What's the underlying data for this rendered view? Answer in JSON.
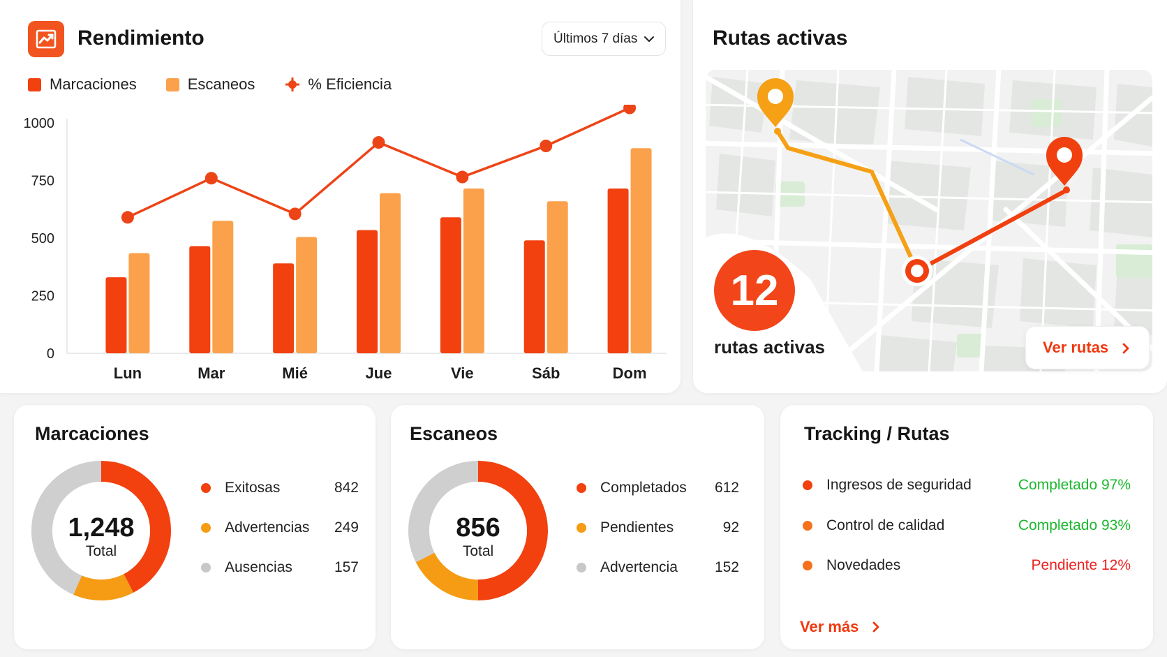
{
  "performance": {
    "title": "Rendimiento",
    "period": "Últimos 7 días",
    "legend": {
      "marcaciones": "Marcaciones",
      "escaneos": "Escaneos",
      "eficiencia": "% Eficiencia"
    }
  },
  "chart_data": {
    "type": "bar",
    "categories": [
      "Lun",
      "Mar",
      "Mié",
      "Jue",
      "Vie",
      "Sáb",
      "Dom"
    ],
    "series": [
      {
        "name": "Marcaciones",
        "type": "bar",
        "color": "#f2400f",
        "values": [
          330,
          465,
          390,
          535,
          590,
          490,
          715
        ]
      },
      {
        "name": "Escaneos",
        "type": "bar",
        "color": "#fba14c",
        "values": [
          435,
          575,
          505,
          695,
          715,
          660,
          890
        ]
      },
      {
        "name": "% Eficiencia",
        "type": "line",
        "color": "#ed4417",
        "values": [
          590,
          760,
          605,
          915,
          765,
          900,
          1065
        ]
      }
    ],
    "ylim": [
      0,
      1000
    ],
    "yticks": [
      "0",
      "250",
      "500",
      "750",
      "1000"
    ],
    "grid": false,
    "legend_position": "top-left"
  },
  "routes": {
    "title": "Rutas activas",
    "count": "12",
    "caption": "rutas activas",
    "button": "Ver rutas"
  },
  "marcaciones": {
    "title": "Marcaciones",
    "total": "1,248",
    "total_label": "Total",
    "items": [
      {
        "label": "Exitosas",
        "value": "842",
        "color": "#f2400f"
      },
      {
        "label": "Advertencias",
        "value": "249",
        "color": "#f59c14"
      },
      {
        "label": "Ausencias",
        "value": "157",
        "color": "#c8c8c8"
      }
    ]
  },
  "escaneos": {
    "title": "Escaneos",
    "total": "856",
    "total_label": "Total",
    "items": [
      {
        "label": "Completados",
        "value": "612",
        "color": "#f2400f"
      },
      {
        "label": "Pendientes",
        "value": "92",
        "color": "#f59c14"
      },
      {
        "label": "Advertencia",
        "value": "152",
        "color": "#c8c8c8"
      }
    ]
  },
  "tracking": {
    "title": "Tracking / Rutas",
    "items": [
      {
        "label": "Ingresos de seguridad",
        "status": "Completado 97%",
        "status_color": "#1cb82e",
        "dot_color": "#f2400f"
      },
      {
        "label": "Control de calidad",
        "status": "Completado 93%",
        "status_color": "#1cb82e",
        "dot_color": "#f5711c"
      },
      {
        "label": "Novedades",
        "status": "Pendiente 12%",
        "status_color": "#ec1f1f",
        "dot_color": "#f5711c"
      }
    ],
    "more": "Ver más"
  }
}
